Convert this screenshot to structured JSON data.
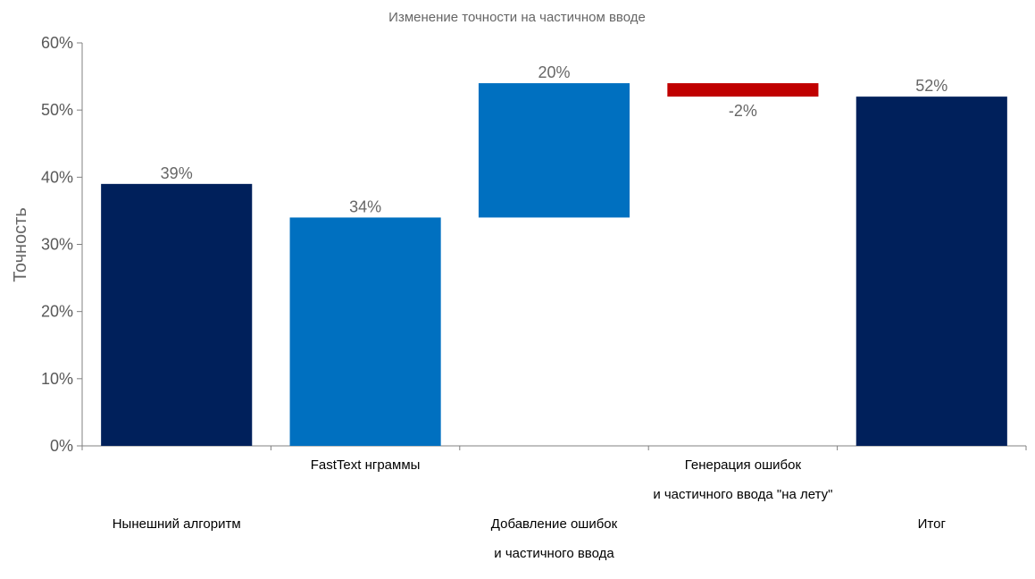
{
  "chart_data": {
    "type": "bar",
    "title": "Изменение точности на частичном вводе",
    "ylabel": "Точность",
    "xlabel": "",
    "ylim": [
      0,
      60
    ],
    "yticks": [
      "0%",
      "10%",
      "20%",
      "30%",
      "40%",
      "50%",
      "60%"
    ],
    "grid": false,
    "legend": "none",
    "categories": [
      [
        "Нынешний алгоритм"
      ],
      [
        "FastText нграммы"
      ],
      [
        "Добавление ошибок",
        "и частичного ввода"
      ],
      [
        "Генерация ошибок",
        "и частичного ввода \"на лету\""
      ],
      [
        "Итог"
      ]
    ],
    "bars": [
      {
        "base": 0,
        "top": 39,
        "label": "39%",
        "color": "#00205b"
      },
      {
        "base": 0,
        "top": 34,
        "label": "34%",
        "color": "#0070c0"
      },
      {
        "base": 34,
        "top": 54,
        "label": "20%",
        "color": "#0070c0"
      },
      {
        "base": 52,
        "top": 54,
        "label": "-2%",
        "color": "#c00000"
      },
      {
        "base": 0,
        "top": 52,
        "label": "52%",
        "color": "#00205b"
      }
    ]
  }
}
